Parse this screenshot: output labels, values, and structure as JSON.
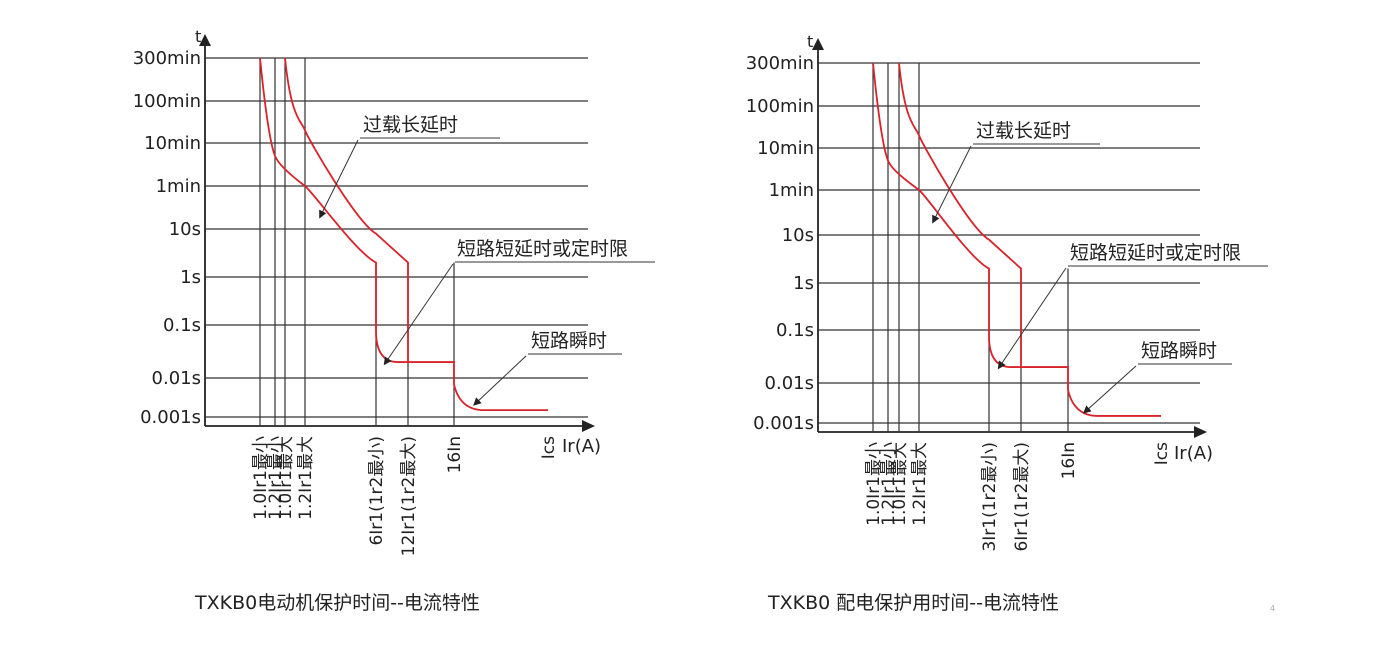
{
  "chart_data": [
    {
      "type": "line",
      "title": "TXKB0电动机保护时间--电流特性",
      "ylabel": "t",
      "xlabel": "Ir(A)",
      "y_ticks": [
        "300min",
        "100min",
        "10min",
        "1min",
        "10s",
        "1s",
        "0.1s",
        "0.01s",
        "0.001s"
      ],
      "x_ticks": [
        "1.0Ir1最小",
        "1.2Ir1最小",
        "1.0Ir1最大",
        "1.2Ir1最大",
        "6Ir1(1r2最小)",
        "12Ir1(1r2最大)",
        "16In",
        "Ics"
      ],
      "annotations": [
        "过载长延时",
        "短路短延时或定时限",
        "短路瞬时"
      ],
      "series": [
        {
          "values": [
            {
              "x": "1.0Ir1最小",
              "y": "300min"
            },
            {
              "x": "1.2Ir1最小",
              "y": "5min"
            },
            {
              "x": "1.0Ir1最大",
              "y": "2min"
            },
            {
              "x": "1.2Ir1最大",
              "y": "1min"
            },
            {
              "x": "6Ir1(1r2最小)",
              "y": "2s"
            },
            {
              "x": "6Ir1(1r2最小)",
              "y": "0.05s"
            },
            {
              "x": "12Ir1(1r2最大)",
              "y": "0.02s"
            },
            {
              "x": "16In",
              "y": "0.02s"
            },
            {
              "x": "16In",
              "y": "0.003s"
            },
            {
              "x": "Ics",
              "y": "0.0015s"
            }
          ]
        },
        {
          "values": [
            {
              "x": "1.0Ir1最大",
              "y": "300min"
            },
            {
              "x": "1.2Ir1最大",
              "y": "20min"
            },
            {
              "x": "6Ir1(1r2最小)",
              "y": "8s"
            },
            {
              "x": "12Ir1(1r2最大)",
              "y": "2s"
            },
            {
              "x": "12Ir1(1r2最大)",
              "y": "0.02s"
            }
          ]
        }
      ]
    },
    {
      "type": "line",
      "title": "TXKB0 配电保护用时间--电流特性",
      "ylabel": "t",
      "xlabel": "Ir(A)",
      "y_ticks": [
        "300min",
        "100min",
        "10min",
        "1min",
        "10s",
        "1s",
        "0.1s",
        "0.01s",
        "0.001s"
      ],
      "x_ticks": [
        "1.0Ir1最小",
        "1.2Ir1最小",
        "1.0Ir1最大",
        "1.2Ir1最大",
        "3Ir1(1r2最小)",
        "6Ir1(1r2最大)",
        "16In",
        "Ics"
      ],
      "annotations": [
        "过载长延时",
        "短路短延时或定时限",
        "短路瞬时"
      ],
      "series": [
        {
          "values": [
            {
              "x": "1.0Ir1最小",
              "y": "300min"
            },
            {
              "x": "1.2Ir1最小",
              "y": "5min"
            },
            {
              "x": "1.0Ir1最大",
              "y": "2min"
            },
            {
              "x": "1.2Ir1最大",
              "y": "1min"
            },
            {
              "x": "3Ir1(1r2最小)",
              "y": "2s"
            },
            {
              "x": "3Ir1(1r2最小)",
              "y": "0.05s"
            },
            {
              "x": "6Ir1(1r2最大)",
              "y": "0.02s"
            },
            {
              "x": "16In",
              "y": "0.02s"
            },
            {
              "x": "16In",
              "y": "0.003s"
            },
            {
              "x": "Ics",
              "y": "0.0015s"
            }
          ]
        },
        {
          "values": [
            {
              "x": "1.0Ir1最大",
              "y": "300min"
            },
            {
              "x": "1.2Ir1最大",
              "y": "20min"
            },
            {
              "x": "3Ir1(1r2最小)",
              "y": "8s"
            },
            {
              "x": "6Ir1(1r2最大)",
              "y": "2s"
            },
            {
              "x": "6Ir1(1r2最大)",
              "y": "0.02s"
            }
          ]
        }
      ]
    }
  ],
  "colors": {
    "curve": "#d9232a",
    "axis": "#222222",
    "grid": "#333333"
  },
  "corner_mark": "4"
}
